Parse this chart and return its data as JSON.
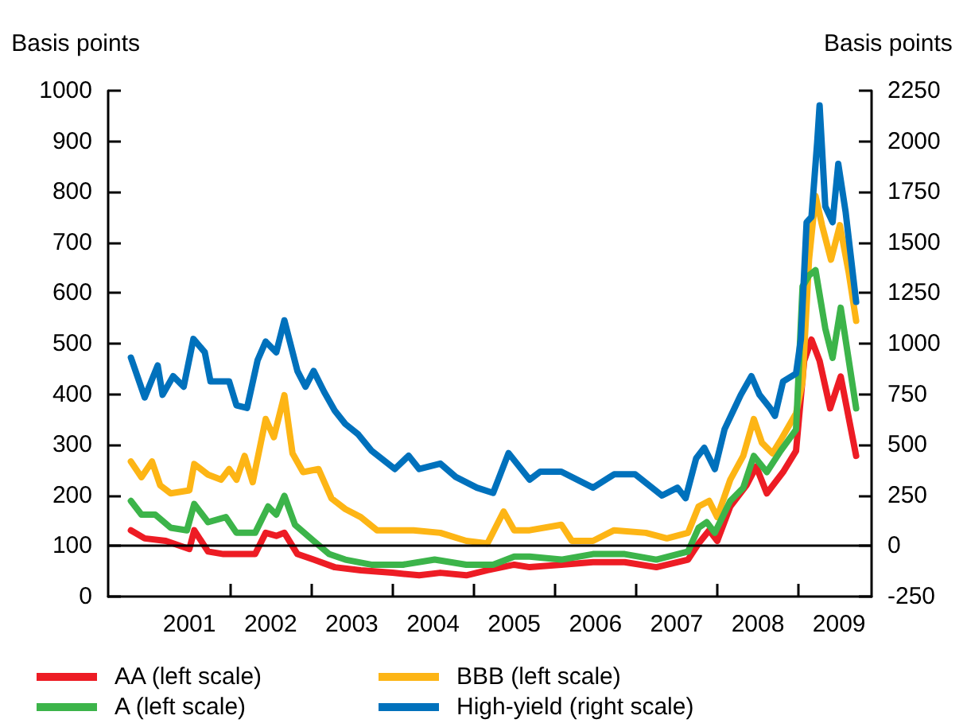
{
  "chart_data": {
    "type": "line",
    "ylabel": "Basis points",
    "y2label": "Basis points",
    "xlim": [
      2000.5,
      2009.9
    ],
    "xticks": [
      {
        "value": 2001.5,
        "label": "2001"
      },
      {
        "value": 2002.5,
        "label": "2002"
      },
      {
        "value": 2003.5,
        "label": "2003"
      },
      {
        "value": 2004.5,
        "label": "2004"
      },
      {
        "value": 2005.5,
        "label": "2005"
      },
      {
        "value": 2006.5,
        "label": "2006"
      },
      {
        "value": 2007.5,
        "label": "2007"
      },
      {
        "value": 2008.5,
        "label": "2008"
      },
      {
        "value": 2009.5,
        "label": "2009"
      },
      {
        "value": 2002,
        "label": null
      },
      {
        "value": 2003,
        "label": null
      },
      {
        "value": 2004,
        "label": null
      },
      {
        "value": 2005,
        "label": null
      },
      {
        "value": 2006,
        "label": null
      },
      {
        "value": 2007,
        "label": null
      },
      {
        "value": 2008,
        "label": null
      },
      {
        "value": 2009,
        "label": null
      }
    ],
    "ylim": [
      0,
      1000
    ],
    "yticks": [
      0,
      100,
      200,
      300,
      400,
      500,
      600,
      700,
      800,
      900,
      1000
    ],
    "y2lim": [
      -250,
      2250
    ],
    "y2ticks": [
      -250,
      0,
      250,
      500,
      750,
      1000,
      1250,
      1500,
      1750,
      2000,
      2250
    ],
    "legend": "bottom",
    "grid": false,
    "ref_lines": [
      {
        "axis": "y2",
        "value": 0,
        "color": "#000000"
      }
    ],
    "series": [
      {
        "name": "AA (left scale)",
        "color": "#ed1c24",
        "x": [
          2000.78,
          2000.95,
          2001.21,
          2001.5,
          2001.56,
          2001.73,
          2001.92,
          2002.12,
          2002.31,
          2002.44,
          2002.57,
          2002.67,
          2002.83,
          2003.03,
          2003.29,
          2003.61,
          2004.0,
          2004.33,
          2004.59,
          2004.91,
          2005.17,
          2005.5,
          2005.69,
          2006.08,
          2006.47,
          2006.86,
          2007.25,
          2007.64,
          2007.77,
          2007.9,
          2008.0,
          2008.16,
          2008.36,
          2008.48,
          2008.61,
          2008.81,
          2008.97,
          2009.07,
          2009.16,
          2009.26,
          2009.39,
          2009.52,
          2009.71
        ],
        "values": [
          131,
          115,
          110,
          94,
          131,
          89,
          84,
          84,
          84,
          126,
          120,
          126,
          84,
          73,
          58,
          52,
          47,
          42,
          47,
          42,
          52,
          63,
          58,
          63,
          68,
          68,
          58,
          73,
          105,
          131,
          110,
          178,
          220,
          257,
          204,
          246,
          288,
          466,
          508,
          466,
          372,
          435,
          278
        ]
      },
      {
        "name": "BBB (left scale)",
        "color": "#fdb515",
        "x": [
          2000.78,
          2000.91,
          2001.04,
          2001.14,
          2001.27,
          2001.5,
          2001.56,
          2001.73,
          2001.89,
          2001.99,
          2002.08,
          2002.18,
          2002.28,
          2002.44,
          2002.54,
          2002.67,
          2002.77,
          2002.9,
          2003.09,
          2003.25,
          2003.42,
          2003.61,
          2003.81,
          2004.07,
          2004.26,
          2004.59,
          2004.91,
          2005.17,
          2005.37,
          2005.5,
          2005.69,
          2006.08,
          2006.21,
          2006.47,
          2006.73,
          2007.12,
          2007.38,
          2007.64,
          2007.77,
          2007.9,
          2008.0,
          2008.16,
          2008.32,
          2008.45,
          2008.55,
          2008.68,
          2008.78,
          2008.97,
          2009.05,
          2009.13,
          2009.21,
          2009.29,
          2009.4,
          2009.51,
          2009.62,
          2009.71
        ],
        "values": [
          267,
          236,
          267,
          220,
          204,
          210,
          262,
          241,
          231,
          252,
          231,
          278,
          226,
          351,
          315,
          398,
          283,
          246,
          252,
          194,
          173,
          157,
          131,
          131,
          131,
          126,
          110,
          105,
          168,
          131,
          131,
          142,
          110,
          110,
          131,
          126,
          115,
          126,
          178,
          189,
          157,
          231,
          278,
          351,
          304,
          283,
          309,
          362,
          425,
          666,
          792,
          734,
          666,
          734,
          639,
          545
        ]
      },
      {
        "name": "A (left scale)",
        "color": "#3cb44a",
        "x": [
          2000.78,
          2000.91,
          2001.08,
          2001.27,
          2001.47,
          2001.56,
          2001.73,
          2001.95,
          2002.08,
          2002.31,
          2002.47,
          2002.57,
          2002.67,
          2002.8,
          2003.03,
          2003.22,
          2003.42,
          2003.74,
          2004.13,
          2004.52,
          2004.91,
          2005.24,
          2005.5,
          2005.69,
          2006.08,
          2006.47,
          2006.86,
          2007.25,
          2007.64,
          2007.77,
          2007.87,
          2007.97,
          2008.16,
          2008.32,
          2008.45,
          2008.61,
          2008.78,
          2008.97,
          2009.05,
          2009.13,
          2009.21,
          2009.33,
          2009.42,
          2009.52,
          2009.71
        ],
        "values": [
          189,
          162,
          162,
          136,
          131,
          183,
          147,
          157,
          126,
          126,
          178,
          162,
          199,
          142,
          110,
          84,
          73,
          63,
          63,
          73,
          63,
          63,
          79,
          79,
          73,
          84,
          84,
          73,
          89,
          136,
          147,
          126,
          189,
          215,
          278,
          246,
          288,
          330,
          613,
          635,
          645,
          530,
          472,
          571,
          372
        ]
      },
      {
        "name": "High-yield (right scale)",
        "axis": "y2",
        "color": "#0071bc",
        "x": [
          2000.78,
          2000.95,
          2001.11,
          2001.17,
          2001.3,
          2001.43,
          2001.55,
          2001.69,
          2001.76,
          2001.99,
          2002.08,
          2002.21,
          2002.34,
          2002.44,
          2002.57,
          2002.67,
          2002.83,
          2002.93,
          2003.03,
          2003.16,
          2003.29,
          2003.42,
          2003.58,
          2003.74,
          2004.03,
          2004.2,
          2004.33,
          2004.59,
          2004.78,
          2005.04,
          2005.24,
          2005.43,
          2005.69,
          2005.82,
          2006.08,
          2006.47,
          2006.73,
          2006.99,
          2007.32,
          2007.51,
          2007.61,
          2007.74,
          2007.84,
          2007.97,
          2008.09,
          2008.29,
          2008.42,
          2008.52,
          2008.65,
          2008.71,
          2008.81,
          2008.97,
          2009.03,
          2009.1,
          2009.16,
          2009.23,
          2009.26,
          2009.33,
          2009.42,
          2009.49,
          2009.58,
          2009.71
        ],
        "values": [
          931,
          734,
          892,
          747,
          839,
          787,
          1023,
          957,
          813,
          813,
          695,
          682,
          918,
          1010,
          957,
          1115,
          865,
          787,
          865,
          761,
          669,
          603,
          551,
          472,
          380,
          446,
          380,
          407,
          341,
          288,
          262,
          459,
          328,
          367,
          367,
          288,
          354,
          354,
          249,
          288,
          236,
          433,
          485,
          380,
          577,
          747,
          839,
          747,
          682,
          643,
          813,
          852,
          1023,
          1600,
          1626,
          1993,
          2177,
          1678,
          1600,
          1888,
          1652,
          1206
        ]
      }
    ]
  }
}
